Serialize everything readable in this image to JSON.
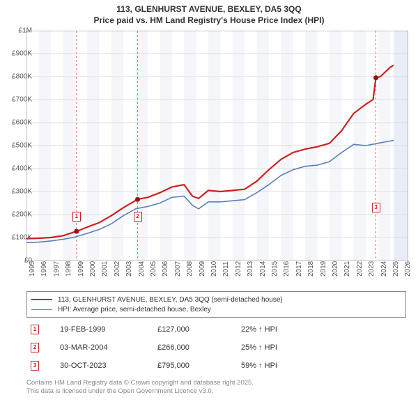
{
  "title_line1": "113, GLENHURST AVENUE, BEXLEY, DA5 3QQ",
  "title_line2": "Price paid vs. HM Land Registry's House Price Index (HPI)",
  "chart": {
    "type": "line",
    "background_color": "#ffffff",
    "grid_color": "#dddddd",
    "alt_band_color": "#f4f6fa",
    "highlight_band_color": "#e8edf7",
    "axis_color": "#888888",
    "ylim": [
      0,
      1000000
    ],
    "yticks": [
      0,
      100000,
      200000,
      300000,
      400000,
      500000,
      600000,
      700000,
      800000,
      900000,
      1000000
    ],
    "ytick_labels": [
      "£0",
      "£100K",
      "£200K",
      "£300K",
      "£400K",
      "£500K",
      "£600K",
      "£700K",
      "£800K",
      "£900K",
      "£1M"
    ],
    "xlim": [
      1995,
      2026.5
    ],
    "xticks": [
      1995,
      1996,
      1997,
      1998,
      1999,
      2000,
      2001,
      2002,
      2003,
      2004,
      2005,
      2006,
      2007,
      2008,
      2009,
      2010,
      2011,
      2012,
      2013,
      2014,
      2015,
      2016,
      2017,
      2018,
      2019,
      2020,
      2021,
      2022,
      2023,
      2024,
      2025,
      2026
    ],
    "series": [
      {
        "name": "price_paid",
        "color": "#d02020",
        "width": 2.2,
        "points": [
          [
            1995.0,
            95000
          ],
          [
            1996.0,
            97000
          ],
          [
            1997.0,
            100000
          ],
          [
            1998.0,
            108000
          ],
          [
            1999.13,
            127000
          ],
          [
            2000.0,
            145000
          ],
          [
            2001.0,
            165000
          ],
          [
            2002.0,
            195000
          ],
          [
            2003.0,
            230000
          ],
          [
            2004.17,
            266000
          ],
          [
            2005.0,
            275000
          ],
          [
            2006.0,
            295000
          ],
          [
            2007.0,
            320000
          ],
          [
            2008.0,
            330000
          ],
          [
            2008.7,
            280000
          ],
          [
            2009.2,
            270000
          ],
          [
            2010.0,
            305000
          ],
          [
            2011.0,
            300000
          ],
          [
            2012.0,
            305000
          ],
          [
            2013.0,
            310000
          ],
          [
            2014.0,
            345000
          ],
          [
            2015.0,
            395000
          ],
          [
            2016.0,
            440000
          ],
          [
            2017.0,
            470000
          ],
          [
            2018.0,
            485000
          ],
          [
            2019.0,
            495000
          ],
          [
            2020.0,
            510000
          ],
          [
            2021.0,
            565000
          ],
          [
            2022.0,
            640000
          ],
          [
            2023.0,
            680000
          ],
          [
            2023.6,
            700000
          ],
          [
            2023.83,
            795000
          ],
          [
            2024.2,
            800000
          ],
          [
            2024.6,
            820000
          ],
          [
            2025.0,
            840000
          ],
          [
            2025.3,
            850000
          ]
        ]
      },
      {
        "name": "hpi",
        "color": "#5b7fb8",
        "width": 1.6,
        "points": [
          [
            1995.0,
            78000
          ],
          [
            1996.0,
            80000
          ],
          [
            1997.0,
            85000
          ],
          [
            1998.0,
            92000
          ],
          [
            1999.0,
            102000
          ],
          [
            2000.0,
            118000
          ],
          [
            2001.0,
            135000
          ],
          [
            2002.0,
            160000
          ],
          [
            2003.0,
            195000
          ],
          [
            2004.0,
            225000
          ],
          [
            2005.0,
            235000
          ],
          [
            2006.0,
            250000
          ],
          [
            2007.0,
            275000
          ],
          [
            2008.0,
            280000
          ],
          [
            2008.7,
            240000
          ],
          [
            2009.2,
            225000
          ],
          [
            2010.0,
            255000
          ],
          [
            2011.0,
            255000
          ],
          [
            2012.0,
            260000
          ],
          [
            2013.0,
            265000
          ],
          [
            2014.0,
            295000
          ],
          [
            2015.0,
            330000
          ],
          [
            2016.0,
            370000
          ],
          [
            2017.0,
            395000
          ],
          [
            2018.0,
            410000
          ],
          [
            2019.0,
            415000
          ],
          [
            2020.0,
            430000
          ],
          [
            2021.0,
            470000
          ],
          [
            2022.0,
            505000
          ],
          [
            2023.0,
            500000
          ],
          [
            2024.0,
            510000
          ],
          [
            2025.0,
            520000
          ],
          [
            2025.3,
            522000
          ]
        ]
      }
    ],
    "sale_markers": [
      {
        "n": "1",
        "x": 1999.13,
        "y": 127000,
        "box_y": 90000
      },
      {
        "n": "2",
        "x": 2004.17,
        "y": 266000,
        "box_y": 90000
      },
      {
        "n": "3",
        "x": 2023.83,
        "y": 795000,
        "box_y": 130000
      }
    ],
    "marker_line_color": "#e06868",
    "sale_dot_color": "#a01010",
    "last_band": {
      "from": 2025.3,
      "to": 2026.5
    }
  },
  "legend": {
    "items": [
      {
        "color": "#d02020",
        "width": 2.2,
        "label": "113, GLENHURST AVENUE, BEXLEY, DA5 3QQ (semi-detached house)"
      },
      {
        "color": "#5b7fb8",
        "width": 1.6,
        "label": "HPI: Average price, semi-detached house, Bexley"
      }
    ]
  },
  "sales": [
    {
      "n": "1",
      "date": "19-FEB-1999",
      "price": "£127,000",
      "delta": "22% ↑ HPI"
    },
    {
      "n": "2",
      "date": "03-MAR-2004",
      "price": "£266,000",
      "delta": "25% ↑ HPI"
    },
    {
      "n": "3",
      "date": "30-OCT-2023",
      "price": "£795,000",
      "delta": "59% ↑ HPI"
    }
  ],
  "footer_line1": "Contains HM Land Registry data © Crown copyright and database right 2025.",
  "footer_line2": "This data is licensed under the Open Government Licence v3.0."
}
